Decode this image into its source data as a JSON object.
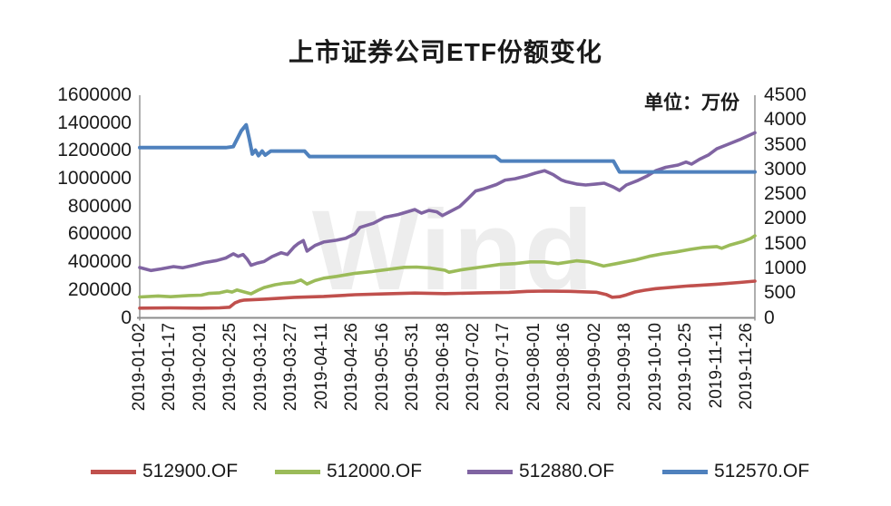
{
  "watermark": "Wind",
  "chart_data": {
    "type": "line",
    "title": "上市证券公司ETF份额变化",
    "unit_label": "单位：万份",
    "unit": "万份",
    "grid": false,
    "legend_position": "bottom",
    "x_tick_labels": [
      "2019-01-02",
      "2019-01-17",
      "2019-02-01",
      "2019-02-25",
      "2019-03-12",
      "2019-03-27",
      "2019-04-11",
      "2019-04-26",
      "2019-05-16",
      "2019-05-31",
      "2019-06-18",
      "2019-07-02",
      "2019-07-17",
      "2019-08-01",
      "2019-08-16",
      "2019-09-02",
      "2019-09-18",
      "2019-10-10",
      "2019-10-25",
      "2019-11-11",
      "2019-11-26"
    ],
    "y_axis_left": {
      "min": 0,
      "max": 1600000,
      "step": 200000,
      "tick_labels_top_to_bottom": [
        "1600000",
        "1400000",
        "1200000",
        "1000000",
        "800000",
        "600000",
        "400000",
        "200000",
        "0"
      ]
    },
    "y_axis_right": {
      "min": 0,
      "max": 4500,
      "step": 500,
      "tick_labels_top_to_bottom": [
        "4500",
        "4000",
        "3500",
        "3000",
        "2500",
        "2000",
        "1500",
        "1000",
        "500",
        "0"
      ]
    },
    "x_encoding": "fraction_of_plot_width_0_to_1",
    "series": [
      {
        "name": "512900.OF",
        "color": "#C0504D",
        "axis": "left",
        "points": [
          [
            0,
            70000
          ],
          [
            0.05,
            72000
          ],
          [
            0.1,
            70000
          ],
          [
            0.13,
            72000
          ],
          [
            0.146,
            76000
          ],
          [
            0.155,
            108000
          ],
          [
            0.163,
            122000
          ],
          [
            0.17,
            128000
          ],
          [
            0.202,
            134000
          ],
          [
            0.251,
            147000
          ],
          [
            0.299,
            154000
          ],
          [
            0.35,
            166000
          ],
          [
            0.398,
            172000
          ],
          [
            0.447,
            178000
          ],
          [
            0.496,
            174000
          ],
          [
            0.555,
            180000
          ],
          [
            0.6,
            183000
          ],
          [
            0.63,
            190000
          ],
          [
            0.658,
            192000
          ],
          [
            0.7,
            190000
          ],
          [
            0.742,
            184000
          ],
          [
            0.758,
            168000
          ],
          [
            0.768,
            148000
          ],
          [
            0.78,
            152000
          ],
          [
            0.791,
            165000
          ],
          [
            0.805,
            186000
          ],
          [
            0.82,
            198000
          ],
          [
            0.839,
            210000
          ],
          [
            0.888,
            228000
          ],
          [
            0.938,
            242000
          ],
          [
            0.975,
            254000
          ],
          [
            1,
            264000
          ]
        ]
      },
      {
        "name": "512000.OF",
        "color": "#9BBB59",
        "axis": "left",
        "points": [
          [
            0,
            150000
          ],
          [
            0.03,
            157000
          ],
          [
            0.05,
            152000
          ],
          [
            0.08,
            160000
          ],
          [
            0.1,
            163000
          ],
          [
            0.112,
            175000
          ],
          [
            0.13,
            180000
          ],
          [
            0.142,
            192000
          ],
          [
            0.15,
            185000
          ],
          [
            0.158,
            200000
          ],
          [
            0.17,
            186000
          ],
          [
            0.181,
            173000
          ],
          [
            0.192,
            198000
          ],
          [
            0.202,
            218000
          ],
          [
            0.22,
            238000
          ],
          [
            0.235,
            248000
          ],
          [
            0.251,
            255000
          ],
          [
            0.262,
            272000
          ],
          [
            0.272,
            243000
          ],
          [
            0.285,
            268000
          ],
          [
            0.299,
            285000
          ],
          [
            0.32,
            298000
          ],
          [
            0.35,
            320000
          ],
          [
            0.378,
            333000
          ],
          [
            0.407,
            350000
          ],
          [
            0.43,
            363000
          ],
          [
            0.45,
            365000
          ],
          [
            0.473,
            358000
          ],
          [
            0.496,
            342000
          ],
          [
            0.503,
            328000
          ],
          [
            0.525,
            347000
          ],
          [
            0.555,
            365000
          ],
          [
            0.585,
            383000
          ],
          [
            0.61,
            390000
          ],
          [
            0.635,
            402000
          ],
          [
            0.658,
            402000
          ],
          [
            0.68,
            390000
          ],
          [
            0.71,
            410000
          ],
          [
            0.73,
            402000
          ],
          [
            0.754,
            372000
          ],
          [
            0.775,
            390000
          ],
          [
            0.805,
            416000
          ],
          [
            0.828,
            442000
          ],
          [
            0.85,
            460000
          ],
          [
            0.872,
            474000
          ],
          [
            0.895,
            492000
          ],
          [
            0.916,
            506000
          ],
          [
            0.938,
            512000
          ],
          [
            0.946,
            500000
          ],
          [
            0.96,
            524000
          ],
          [
            0.98,
            548000
          ],
          [
            0.993,
            570000
          ],
          [
            1,
            590000
          ]
        ]
      },
      {
        "name": "512880.OF",
        "color": "#8064A2",
        "axis": "left",
        "points": [
          [
            0,
            362000
          ],
          [
            0.018,
            340000
          ],
          [
            0.035,
            352000
          ],
          [
            0.055,
            368000
          ],
          [
            0.07,
            360000
          ],
          [
            0.09,
            380000
          ],
          [
            0.105,
            397000
          ],
          [
            0.125,
            412000
          ],
          [
            0.14,
            430000
          ],
          [
            0.146,
            445000
          ],
          [
            0.152,
            460000
          ],
          [
            0.16,
            442000
          ],
          [
            0.168,
            455000
          ],
          [
            0.175,
            420000
          ],
          [
            0.181,
            378000
          ],
          [
            0.19,
            392000
          ],
          [
            0.202,
            405000
          ],
          [
            0.215,
            440000
          ],
          [
            0.23,
            468000
          ],
          [
            0.24,
            455000
          ],
          [
            0.251,
            510000
          ],
          [
            0.258,
            535000
          ],
          [
            0.266,
            555000
          ],
          [
            0.272,
            480000
          ],
          [
            0.285,
            520000
          ],
          [
            0.299,
            545000
          ],
          [
            0.32,
            558000
          ],
          [
            0.335,
            572000
          ],
          [
            0.35,
            605000
          ],
          [
            0.358,
            650000
          ],
          [
            0.38,
            680000
          ],
          [
            0.398,
            722000
          ],
          [
            0.42,
            742000
          ],
          [
            0.447,
            778000
          ],
          [
            0.458,
            752000
          ],
          [
            0.47,
            772000
          ],
          [
            0.483,
            762000
          ],
          [
            0.492,
            735000
          ],
          [
            0.503,
            760000
          ],
          [
            0.52,
            800000
          ],
          [
            0.532,
            850000
          ],
          [
            0.546,
            912000
          ],
          [
            0.56,
            928000
          ],
          [
            0.58,
            958000
          ],
          [
            0.594,
            990000
          ],
          [
            0.61,
            1000000
          ],
          [
            0.63,
            1022000
          ],
          [
            0.643,
            1040000
          ],
          [
            0.658,
            1058000
          ],
          [
            0.672,
            1030000
          ],
          [
            0.685,
            992000
          ],
          [
            0.692,
            980000
          ],
          [
            0.71,
            962000
          ],
          [
            0.725,
            955000
          ],
          [
            0.742,
            962000
          ],
          [
            0.755,
            968000
          ],
          [
            0.77,
            940000
          ],
          [
            0.78,
            916000
          ],
          [
            0.791,
            955000
          ],
          [
            0.81,
            988000
          ],
          [
            0.825,
            1020000
          ],
          [
            0.839,
            1058000
          ],
          [
            0.855,
            1082000
          ],
          [
            0.875,
            1098000
          ],
          [
            0.888,
            1120000
          ],
          [
            0.897,
            1105000
          ],
          [
            0.91,
            1140000
          ],
          [
            0.925,
            1172000
          ],
          [
            0.938,
            1215000
          ],
          [
            0.955,
            1245000
          ],
          [
            0.975,
            1280000
          ],
          [
            1,
            1330000
          ]
        ]
      },
      {
        "name": "512570.OF",
        "color": "#4F81BD",
        "axis": "right",
        "points": [
          [
            0,
            3440
          ],
          [
            0.14,
            3440
          ],
          [
            0.152,
            3460
          ],
          [
            0.165,
            3780
          ],
          [
            0.173,
            3900
          ],
          [
            0.178,
            3620
          ],
          [
            0.183,
            3310
          ],
          [
            0.188,
            3390
          ],
          [
            0.193,
            3280
          ],
          [
            0.199,
            3370
          ],
          [
            0.204,
            3290
          ],
          [
            0.213,
            3370
          ],
          [
            0.268,
            3370
          ],
          [
            0.276,
            3260
          ],
          [
            0.578,
            3260
          ],
          [
            0.587,
            3170
          ],
          [
            0.77,
            3170
          ],
          [
            0.78,
            2950
          ],
          [
            1,
            2950
          ]
        ]
      }
    ]
  },
  "style": {
    "axis_line_color": "#8C8C8C",
    "text_color": "#1A1A1A",
    "watermark_color": "#EDEDED"
  }
}
